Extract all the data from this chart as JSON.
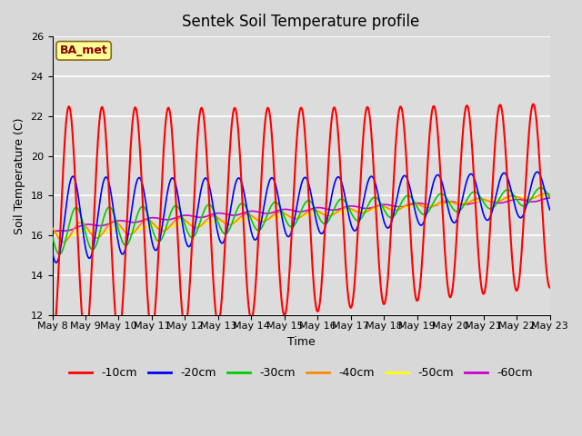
{
  "title": "Sentek Soil Temperature profile",
  "xlabel": "Time",
  "ylabel": "Soil Temperature (C)",
  "ylim": [
    12,
    26
  ],
  "yticks": [
    12,
    14,
    16,
    18,
    20,
    22,
    24,
    26
  ],
  "annotation_text": "BA_met",
  "background_color": "#dcdcdc",
  "plot_bg_color": "#dcdcdc",
  "legend_labels": [
    "-10cm",
    "-20cm",
    "-30cm",
    "-40cm",
    "-50cm",
    "-60cm"
  ],
  "legend_colors": [
    "#ff0000",
    "#0000ff",
    "#00cc00",
    "#ff8800",
    "#ffff00",
    "#cc00cc"
  ],
  "n_days": 15,
  "start_day": 8,
  "samples_per_day": 48,
  "title_fontsize": 12,
  "axis_label_fontsize": 9,
  "tick_fontsize": 8,
  "legend_fontsize": 9
}
